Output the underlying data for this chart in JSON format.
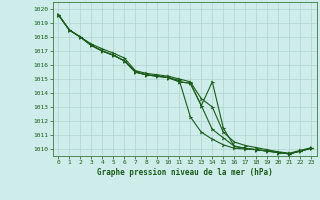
{
  "title": "Graphe pression niveau de la mer (hPa)",
  "background_color": "#ceecea",
  "grid_color": "#afd4d0",
  "line_color": "#1a5c1a",
  "spine_color": "#3a7a3a",
  "xlim": [
    -0.5,
    23.5
  ],
  "ylim": [
    1009.5,
    1020.5
  ],
  "yticks": [
    1010,
    1011,
    1012,
    1013,
    1014,
    1015,
    1016,
    1017,
    1018,
    1019,
    1020
  ],
  "xticks": [
    0,
    1,
    2,
    3,
    4,
    5,
    6,
    7,
    8,
    9,
    10,
    11,
    12,
    13,
    14,
    15,
    16,
    17,
    18,
    19,
    20,
    21,
    22,
    23
  ],
  "series": [
    [
      1019.6,
      1018.5,
      1018.0,
      1017.4,
      1017.0,
      1016.7,
      1016.3,
      1015.5,
      1015.3,
      1015.2,
      1015.1,
      1014.9,
      1012.3,
      1011.2,
      1010.7,
      1010.3,
      1010.05,
      1010.0,
      1009.95,
      1009.85,
      1009.75,
      1009.65,
      1009.85,
      1010.05
    ],
    [
      1019.6,
      1018.5,
      1018.0,
      1017.4,
      1017.0,
      1016.7,
      1016.3,
      1015.5,
      1015.3,
      1015.2,
      1015.1,
      1014.8,
      1014.7,
      1013.1,
      1011.4,
      1010.8,
      1010.2,
      1010.05,
      1009.95,
      1009.85,
      1009.75,
      1009.65,
      1009.85,
      1010.05
    ],
    [
      1019.6,
      1018.5,
      1018.0,
      1017.5,
      1017.15,
      1016.85,
      1016.5,
      1015.6,
      1015.4,
      1015.3,
      1015.2,
      1015.0,
      1014.8,
      1013.6,
      1013.0,
      1011.2,
      1010.5,
      1010.25,
      1010.1,
      1009.95,
      1009.8,
      1009.7,
      1009.9,
      1010.1
    ],
    [
      1019.6,
      1018.5,
      1018.0,
      1017.4,
      1017.0,
      1016.7,
      1016.3,
      1015.5,
      1015.3,
      1015.2,
      1015.1,
      1014.8,
      1014.7,
      1013.1,
      1014.8,
      1011.5,
      1010.2,
      1010.05,
      1009.95,
      1009.85,
      1009.75,
      1009.65,
      1009.85,
      1010.05
    ]
  ]
}
